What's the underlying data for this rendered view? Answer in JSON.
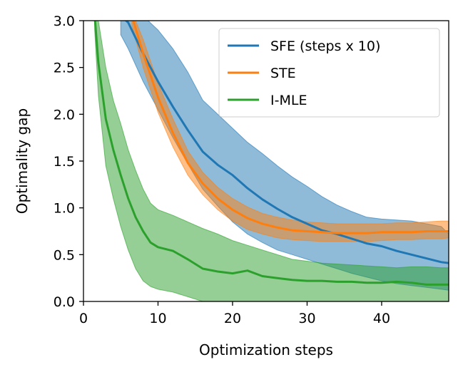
{
  "chart_data": {
    "type": "line",
    "title": "",
    "xlabel": "Optimization steps",
    "ylabel": "Optimality gap",
    "xlim": [
      0,
      49
    ],
    "ylim": [
      0,
      3.0
    ],
    "x_ticks": [
      "0",
      "10",
      "20",
      "30",
      "40"
    ],
    "x_tick_values": [
      0,
      10,
      20,
      30,
      40
    ],
    "y_ticks": [
      "0.0",
      "0.5",
      "1.0",
      "1.5",
      "2.0",
      "2.5",
      "3.0"
    ],
    "y_tick_values": [
      0,
      0.5,
      1.0,
      1.5,
      2.0,
      2.5,
      3.0
    ],
    "grid": false,
    "legend_position": "top-right",
    "series": [
      {
        "name": "SFE (steps x 10)",
        "color": "#1f77b4",
        "x": [
          5,
          6,
          8,
          10,
          12,
          14,
          16,
          18,
          20,
          22,
          24,
          26,
          28,
          30,
          32,
          34,
          36,
          38,
          40,
          42,
          44,
          46,
          48,
          49
        ],
        "mean": [
          3.05,
          2.98,
          2.65,
          2.35,
          2.08,
          1.83,
          1.6,
          1.46,
          1.35,
          1.21,
          1.09,
          0.99,
          0.9,
          0.83,
          0.76,
          0.72,
          0.67,
          0.62,
          0.59,
          0.54,
          0.5,
          0.46,
          0.42,
          0.41
        ],
        "lower": [
          2.85,
          2.7,
          2.35,
          2.05,
          1.75,
          1.47,
          1.2,
          1.02,
          0.85,
          0.72,
          0.63,
          0.55,
          0.5,
          0.45,
          0.4,
          0.35,
          0.3,
          0.26,
          0.22,
          0.19,
          0.17,
          0.15,
          0.13,
          0.12
        ],
        "upper": [
          3.1,
          3.1,
          3.05,
          2.9,
          2.7,
          2.45,
          2.15,
          2.0,
          1.85,
          1.7,
          1.58,
          1.45,
          1.33,
          1.23,
          1.12,
          1.03,
          0.96,
          0.9,
          0.88,
          0.87,
          0.86,
          0.83,
          0.8,
          0.72
        ]
      },
      {
        "name": "STE",
        "color": "#ff7f0e",
        "x": [
          6.5,
          8,
          10,
          12,
          14,
          16,
          18,
          20,
          22,
          24,
          26,
          28,
          30,
          32,
          34,
          36,
          38,
          40,
          42,
          44,
          46,
          48,
          49
        ],
        "mean": [
          3.05,
          2.65,
          2.18,
          1.8,
          1.48,
          1.26,
          1.1,
          0.98,
          0.89,
          0.83,
          0.79,
          0.76,
          0.75,
          0.74,
          0.73,
          0.73,
          0.73,
          0.74,
          0.74,
          0.74,
          0.75,
          0.75,
          0.75
        ],
        "lower": [
          2.95,
          2.5,
          2.02,
          1.65,
          1.35,
          1.14,
          0.98,
          0.86,
          0.77,
          0.72,
          0.68,
          0.66,
          0.65,
          0.64,
          0.64,
          0.64,
          0.64,
          0.65,
          0.66,
          0.66,
          0.67,
          0.67,
          0.68
        ],
        "upper": [
          3.1,
          2.8,
          2.33,
          1.95,
          1.61,
          1.38,
          1.22,
          1.1,
          1.01,
          0.94,
          0.9,
          0.87,
          0.85,
          0.84,
          0.83,
          0.83,
          0.83,
          0.83,
          0.84,
          0.84,
          0.85,
          0.86,
          0.86
        ]
      },
      {
        "name": "I-MLE",
        "color": "#2ca02c",
        "x": [
          1.5,
          2,
          3,
          4,
          5,
          6,
          7,
          8,
          9,
          10,
          12,
          14,
          16,
          18,
          20,
          22,
          24,
          26,
          28,
          30,
          32,
          34,
          36,
          38,
          40,
          42,
          44,
          46,
          48,
          49
        ],
        "mean": [
          3.05,
          2.55,
          1.95,
          1.62,
          1.35,
          1.1,
          0.9,
          0.75,
          0.63,
          0.58,
          0.54,
          0.45,
          0.35,
          0.32,
          0.3,
          0.33,
          0.27,
          0.25,
          0.23,
          0.22,
          0.22,
          0.21,
          0.21,
          0.2,
          0.2,
          0.21,
          0.2,
          0.18,
          0.18,
          0.18
        ],
        "lower": [
          2.9,
          2.2,
          1.45,
          1.1,
          0.8,
          0.55,
          0.35,
          0.22,
          0.16,
          0.13,
          0.1,
          0.05,
          0.0,
          0.0,
          0.0,
          0.0,
          0.0,
          0.0,
          0.0,
          0.0,
          0.0,
          0.0,
          0.0,
          0.0,
          0.0,
          0.0,
          0.0,
          0.0,
          0.0,
          0.0
        ],
        "upper": [
          3.1,
          3.0,
          2.5,
          2.15,
          1.9,
          1.62,
          1.4,
          1.2,
          1.05,
          0.98,
          0.92,
          0.85,
          0.78,
          0.72,
          0.65,
          0.6,
          0.55,
          0.5,
          0.45,
          0.43,
          0.41,
          0.4,
          0.39,
          0.38,
          0.37,
          0.36,
          0.37,
          0.37,
          0.36,
          0.36
        ]
      }
    ]
  }
}
